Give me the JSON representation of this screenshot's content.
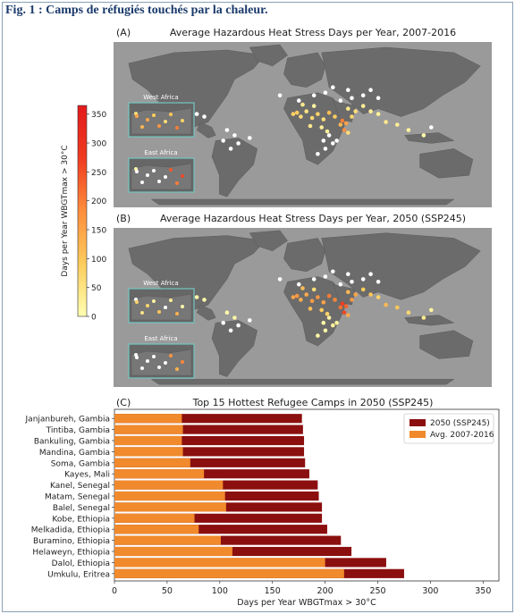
{
  "figure_title": "Fig. 1 : Camps de réfugiés touchés par la chaleur.",
  "panel_a": {
    "label": "(A)",
    "title": "Average Hazardous Heat Stress Days per Year, 2007-2016",
    "insets": [
      "West Africa",
      "East Africa"
    ]
  },
  "panel_b": {
    "label": "(B)",
    "title": "Average Hazardous Heat Stress Days per Year, 2050 (SSP245)",
    "insets": [
      "West Africa",
      "East Africa"
    ]
  },
  "panel_c": {
    "label": "(C)",
    "title": "Top 15 Hottest Refugee Camps in 2050 (SSP245)"
  },
  "colors": {
    "ocean": "#9a9a9a",
    "land": "#6b6b6b",
    "inset_border": "#74c7c0",
    "bar_2050": "#8b0f0f",
    "bar_avg": "#f08a2c"
  },
  "chart_data": [
    {
      "type": "colorbar",
      "label": "Days per Year WBGTmax > 30°C",
      "range": [
        0,
        365
      ],
      "ticks": [
        0,
        50,
        100,
        150,
        200,
        250,
        300,
        350
      ],
      "colormap": [
        "#ffffb2",
        "#fecc5c",
        "#fd8d3c",
        "#f03b20",
        "#e31a1c"
      ]
    },
    {
      "type": "bar",
      "orientation": "horizontal",
      "title": "Top 15 Hottest Refugee Camps in 2050 (SSP245)",
      "xlabel": "Days per Year WBGTmax > 30°C",
      "xlim": [
        0,
        365
      ],
      "xticks": [
        0,
        50,
        100,
        150,
        200,
        250,
        300,
        350
      ],
      "categories": [
        "Janjanbureh, Gambia",
        "Tintiba, Gambia",
        "Bankuling, Gambia",
        "Mandina, Gambia",
        "Soma, Gambia",
        "Kayes, Mali",
        "Kanel, Senegal",
        "Matam, Senegal",
        "Balel, Senegal",
        "Kobe, Ethiopia",
        "Melkadida, Ethiopia",
        "Buramino, Ethiopia",
        "Helaweyn, Ethiopia",
        "Dalol, Ethiopia",
        "Umkulu, Eritrea"
      ],
      "series": [
        {
          "name": "2050 (SSP245)",
          "values": [
            178,
            179,
            180,
            180,
            181,
            185,
            193,
            194,
            197,
            197,
            202,
            215,
            225,
            258,
            275
          ]
        },
        {
          "name": "Avg. 2007-2016",
          "values": [
            64,
            65,
            64,
            65,
            72,
            85,
            103,
            105,
            106,
            76,
            80,
            101,
            112,
            200,
            218
          ]
        }
      ],
      "legend_position": "top-right"
    }
  ]
}
